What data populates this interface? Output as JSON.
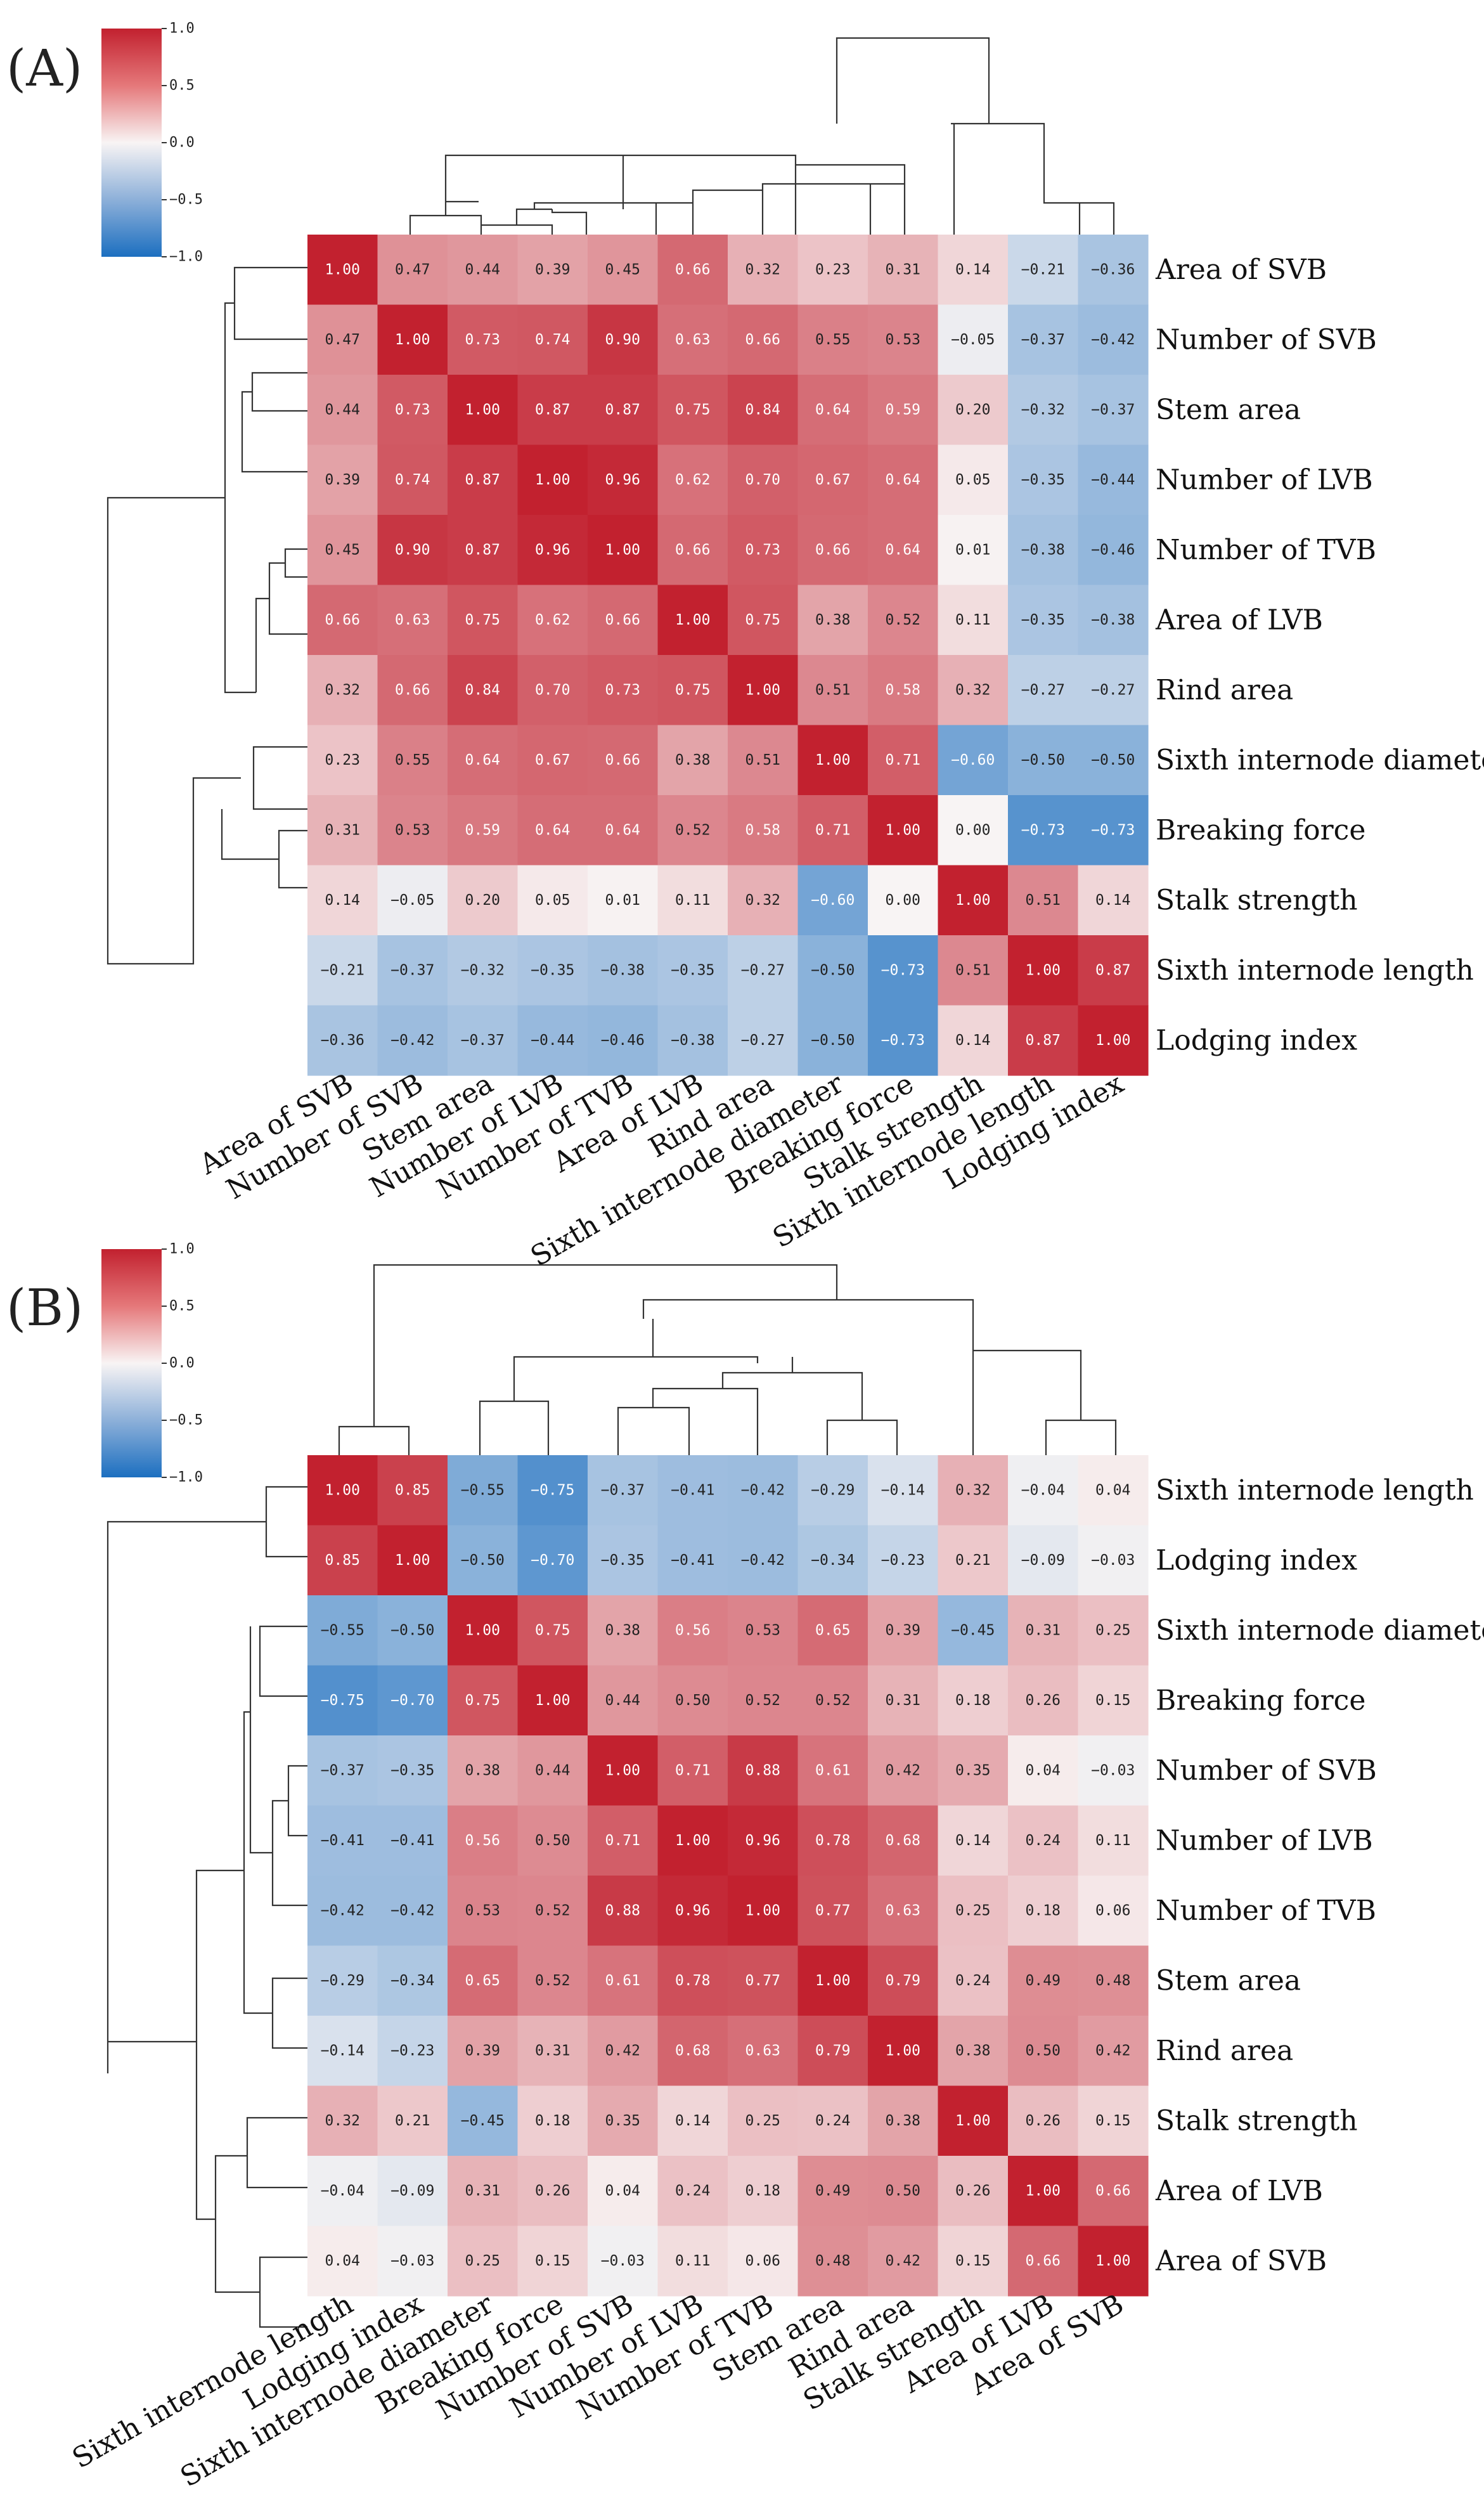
{
  "colors": {
    "positive": "#c2212f",
    "neutral": "#f8f4f4",
    "negative": "#1c6fc0",
    "panel_label": "#222222"
  },
  "chart_data": [
    {
      "type": "heatmap",
      "panel_label": "(A)",
      "title": "",
      "colorbar": {
        "range": [
          -1.0,
          1.0
        ],
        "ticks": [
          "1.0",
          "0.5",
          "0.0",
          "−0.5",
          "−1.0"
        ],
        "placement": "top-left"
      },
      "row_labels": [
        "Area of SVB",
        "Number of SVB",
        "Stem area",
        "Number of LVB",
        "Number of TVB",
        "Area of LVB",
        "Rind area",
        "Sixth internode diameter",
        "Breaking force",
        "Stalk strength",
        "Sixth internode length",
        "Lodging index"
      ],
      "col_labels": [
        "Area of SVB",
        "Number of SVB",
        "Stem area",
        "Number of LVB",
        "Number of TVB",
        "Area of LVB",
        "Rind area",
        "Sixth internode diameter",
        "Breaking force",
        "Stalk strength",
        "Sixth internode length",
        "Lodging index"
      ],
      "values": [
        [
          1.0,
          0.47,
          0.44,
          0.39,
          0.45,
          0.66,
          0.32,
          0.23,
          0.31,
          0.14,
          -0.21,
          -0.36
        ],
        [
          0.47,
          1.0,
          0.73,
          0.74,
          0.9,
          0.63,
          0.66,
          0.55,
          0.53,
          -0.05,
          -0.37,
          -0.42
        ],
        [
          0.44,
          0.73,
          1.0,
          0.87,
          0.87,
          0.75,
          0.84,
          0.64,
          0.59,
          0.2,
          -0.32,
          -0.37
        ],
        [
          0.39,
          0.74,
          0.87,
          1.0,
          0.96,
          0.62,
          0.7,
          0.67,
          0.64,
          0.05,
          -0.35,
          -0.44
        ],
        [
          0.45,
          0.9,
          0.87,
          0.96,
          1.0,
          0.66,
          0.73,
          0.66,
          0.64,
          0.01,
          -0.38,
          -0.46
        ],
        [
          0.66,
          0.63,
          0.75,
          0.62,
          0.66,
          1.0,
          0.75,
          0.38,
          0.52,
          0.11,
          -0.35,
          -0.38
        ],
        [
          0.32,
          0.66,
          0.84,
          0.7,
          0.73,
          0.75,
          1.0,
          0.51,
          0.58,
          0.32,
          -0.27,
          -0.27
        ],
        [
          0.23,
          0.55,
          0.64,
          0.67,
          0.66,
          0.38,
          0.51,
          1.0,
          0.71,
          -0.6,
          -0.5,
          -0.5
        ],
        [
          0.31,
          0.53,
          0.59,
          0.64,
          0.64,
          0.52,
          0.58,
          0.71,
          1.0,
          0.0,
          -0.73,
          -0.73
        ],
        [
          0.14,
          -0.05,
          0.2,
          0.05,
          0.01,
          0.11,
          0.32,
          -0.6,
          0.0,
          1.0,
          0.51,
          0.14
        ],
        [
          -0.21,
          -0.37,
          -0.32,
          -0.35,
          -0.38,
          -0.35,
          -0.27,
          -0.5,
          -0.73,
          0.51,
          1.0,
          0.87
        ],
        [
          -0.36,
          -0.42,
          -0.37,
          -0.44,
          -0.46,
          -0.38,
          -0.27,
          -0.5,
          -0.73,
          0.14,
          0.87,
          1.0
        ]
      ],
      "dendrogram": "hierarchical clustering shown on top and left"
    },
    {
      "type": "heatmap",
      "panel_label": "(B)",
      "title": "",
      "colorbar": {
        "range": [
          -1.0,
          1.0
        ],
        "ticks": [
          "1.0",
          "0.5",
          "0.0",
          "−0.5",
          "−1.0"
        ],
        "placement": "top-left"
      },
      "row_labels": [
        "Sixth internode length",
        "Lodging index",
        "Sixth internode diameter",
        "Breaking force",
        "Number of SVB",
        "Number of LVB",
        "Number of TVB",
        "Stem area",
        "Rind area",
        "Stalk strength",
        "Area of LVB",
        "Area of SVB"
      ],
      "col_labels": [
        "Sixth internode length",
        "Lodging index",
        "Sixth internode diameter",
        "Breaking force",
        "Number of SVB",
        "Number of LVB",
        "Number of TVB",
        "Stem area",
        "Rind area",
        "Stalk strength",
        "Area of LVB",
        "Area of SVB"
      ],
      "values": [
        [
          1.0,
          0.85,
          -0.55,
          -0.75,
          -0.37,
          -0.41,
          -0.42,
          -0.29,
          -0.14,
          0.32,
          -0.04,
          0.04
        ],
        [
          0.85,
          1.0,
          -0.5,
          -0.7,
          -0.35,
          -0.41,
          -0.42,
          -0.34,
          -0.23,
          0.21,
          -0.09,
          -0.03
        ],
        [
          -0.55,
          -0.5,
          1.0,
          0.75,
          0.38,
          0.56,
          0.53,
          0.65,
          0.39,
          -0.45,
          0.31,
          0.25
        ],
        [
          -0.75,
          -0.7,
          0.75,
          1.0,
          0.44,
          0.5,
          0.52,
          0.52,
          0.31,
          0.18,
          0.26,
          0.15
        ],
        [
          -0.37,
          -0.35,
          0.38,
          0.44,
          1.0,
          0.71,
          0.88,
          0.61,
          0.42,
          0.35,
          0.04,
          -0.03
        ],
        [
          -0.41,
          -0.41,
          0.56,
          0.5,
          0.71,
          1.0,
          0.96,
          0.78,
          0.68,
          0.14,
          0.24,
          0.11
        ],
        [
          -0.42,
          -0.42,
          0.53,
          0.52,
          0.88,
          0.96,
          1.0,
          0.77,
          0.63,
          0.25,
          0.18,
          0.06
        ],
        [
          -0.29,
          -0.34,
          0.65,
          0.52,
          0.61,
          0.78,
          0.77,
          1.0,
          0.79,
          0.24,
          0.49,
          0.48
        ],
        [
          -0.14,
          -0.23,
          0.39,
          0.31,
          0.42,
          0.68,
          0.63,
          0.79,
          1.0,
          0.38,
          0.5,
          0.42
        ],
        [
          0.32,
          0.21,
          -0.45,
          0.18,
          0.35,
          0.14,
          0.25,
          0.24,
          0.38,
          1.0,
          0.26,
          0.15
        ],
        [
          -0.04,
          -0.09,
          0.31,
          0.26,
          0.04,
          0.24,
          0.18,
          0.49,
          0.5,
          0.26,
          1.0,
          0.66
        ],
        [
          0.04,
          -0.03,
          0.25,
          0.15,
          -0.03,
          0.11,
          0.06,
          0.48,
          0.42,
          0.15,
          0.66,
          1.0
        ]
      ],
      "dendrogram": "hierarchical clustering shown on top and left"
    }
  ]
}
